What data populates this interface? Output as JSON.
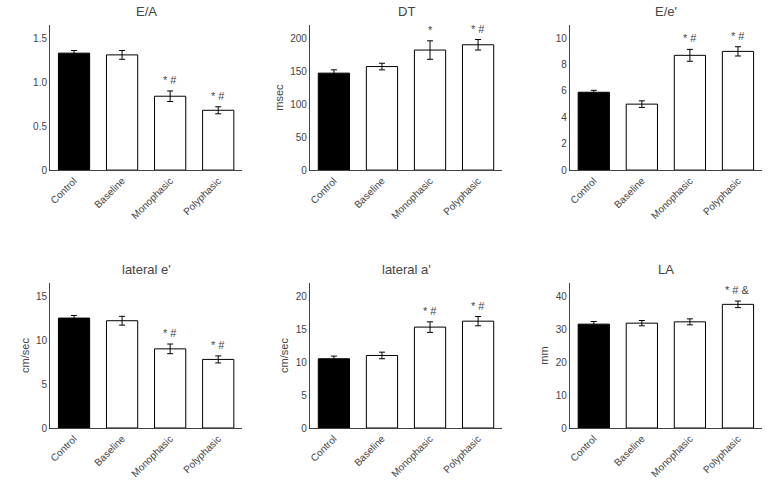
{
  "chart_data": [
    {
      "type": "bar",
      "title": "E/A",
      "categories": [
        "Control",
        "Baseline",
        "Monophasic",
        "Polyphasic"
      ],
      "values": [
        1.33,
        1.31,
        0.84,
        0.68
      ],
      "errors": [
        0.03,
        0.05,
        0.06,
        0.04
      ],
      "colors": [
        "black",
        "white",
        "white",
        "white"
      ],
      "annotations": [
        {
          "x": "Monophasic",
          "text": "* #"
        },
        {
          "x": "Polyphasic",
          "text": "* #"
        }
      ],
      "ylim": [
        0,
        1.65
      ],
      "yticks": [
        0.0,
        {
          "value": 0.5,
          "label": "0.5"
        },
        {
          "value": 1.0,
          "label": "1.0"
        },
        {
          "value": 1.5,
          "label": "1.5"
        }
      ],
      "grid": false
    },
    {
      "type": "bar",
      "title": "DT",
      "ylabel": "msec",
      "categories": [
        "Control",
        "Baseline",
        "Monophasic",
        "Polyphasic"
      ],
      "values": [
        147,
        157,
        182,
        190
      ],
      "errors": [
        5,
        5,
        14,
        8
      ],
      "colors": [
        "black",
        "white",
        "white",
        "white"
      ],
      "annotations": [
        {
          "x": "Monophasic",
          "text": "*"
        },
        {
          "x": "Polyphasic",
          "text": "* #"
        }
      ],
      "ylim": [
        0,
        220
      ],
      "yticks": [
        0,
        50,
        100,
        150,
        200
      ],
      "grid": false
    },
    {
      "type": "bar",
      "title": "E/e'",
      "categories": [
        "Control",
        "Baseline",
        "Monophasic",
        "Polyphasic"
      ],
      "values": [
        5.9,
        5.0,
        8.7,
        9.0
      ],
      "errors": [
        0.15,
        0.25,
        0.45,
        0.35
      ],
      "colors": [
        "black",
        "white",
        "white",
        "white"
      ],
      "annotations": [
        {
          "x": "Monophasic",
          "text": "* #"
        },
        {
          "x": "Polyphasic",
          "text": "* #"
        }
      ],
      "ylim": [
        0,
        11
      ],
      "yticks": [
        0,
        2,
        4,
        6,
        8,
        10
      ],
      "grid": false
    },
    {
      "type": "bar",
      "title": "lateral e'",
      "ylabel": "cm/sec",
      "categories": [
        "Control",
        "Baseline",
        "Monophasic",
        "Polyphasic"
      ],
      "values": [
        12.5,
        12.2,
        9.0,
        7.8
      ],
      "errors": [
        0.3,
        0.5,
        0.55,
        0.4
      ],
      "colors": [
        "black",
        "white",
        "white",
        "white"
      ],
      "annotations": [
        {
          "x": "Monophasic",
          "text": "* #"
        },
        {
          "x": "Polyphasic",
          "text": "* #"
        }
      ],
      "ylim": [
        0,
        16.5
      ],
      "yticks": [
        0,
        5,
        10,
        15
      ],
      "grid": false
    },
    {
      "type": "bar",
      "title": "lateral a'",
      "ylabel": "cm/sec",
      "categories": [
        "Control",
        "Baseline",
        "Monophasic",
        "Polyphasic"
      ],
      "values": [
        10.5,
        11.0,
        15.3,
        16.2
      ],
      "errors": [
        0.4,
        0.5,
        0.8,
        0.7
      ],
      "colors": [
        "black",
        "white",
        "white",
        "white"
      ],
      "annotations": [
        {
          "x": "Monophasic",
          "text": "* #"
        },
        {
          "x": "Polyphasic",
          "text": "* #"
        }
      ],
      "ylim": [
        0,
        22
      ],
      "yticks": [
        0,
        5,
        10,
        15,
        20
      ],
      "grid": false
    },
    {
      "type": "bar",
      "title": "LA",
      "ylabel": "mm",
      "categories": [
        "Control",
        "Baseline",
        "Monophasic",
        "Polyphasic"
      ],
      "values": [
        31.5,
        31.8,
        32.2,
        37.5
      ],
      "errors": [
        0.8,
        0.8,
        0.9,
        1.0
      ],
      "colors": [
        "black",
        "white",
        "white",
        "white"
      ],
      "annotations": [
        {
          "x": "Polyphasic",
          "text": "* # &"
        }
      ],
      "ylim": [
        0,
        44
      ],
      "yticks": [
        0,
        10,
        20,
        30,
        40
      ],
      "grid": false
    }
  ]
}
